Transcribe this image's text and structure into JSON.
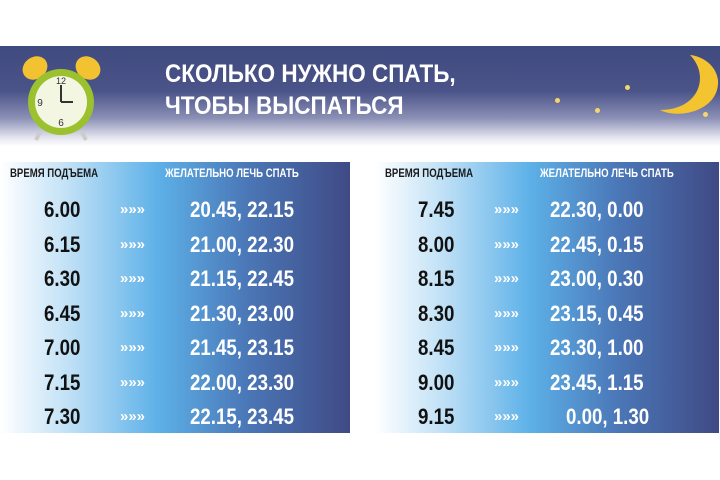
{
  "title": {
    "line1": "СКОЛЬКО НУЖНО СПАТЬ,",
    "line2": "ЧТОБЫ ВЫСПАТЬСЯ"
  },
  "icons": {
    "clock": "alarm-clock-icon",
    "moon": "crescent-moon-icon"
  },
  "colors": {
    "navy": "#3f4a85",
    "sky": "#5db1e8",
    "gold": "#f4c430"
  },
  "tables": [
    {
      "header_wake": "ВРЕМЯ ПОДЪЕМА",
      "header_sleep": "ЖЕЛАТЕЛЬНО ЛЕЧЬ СПАТЬ",
      "rows": [
        {
          "wake": "6.00",
          "arrow": "»»»",
          "sleep": "20.45, 22.15"
        },
        {
          "wake": "6.15",
          "arrow": "»»»",
          "sleep": "21.00, 22.30"
        },
        {
          "wake": "6.30",
          "arrow": "»»»",
          "sleep": "21.15, 22.45"
        },
        {
          "wake": "6.45",
          "arrow": "»»»",
          "sleep": "21.30, 23.00"
        },
        {
          "wake": "7.00",
          "arrow": "»»»",
          "sleep": "21.45, 23.15"
        },
        {
          "wake": "7.15",
          "arrow": "»»»",
          "sleep": "22.00, 23.30"
        },
        {
          "wake": "7.30",
          "arrow": "»»»",
          "sleep": "22.15, 23.45"
        }
      ]
    },
    {
      "header_wake": "ВРЕМЯ ПОДЪЕМА",
      "header_sleep": "ЖЕЛАТЕЛЬНО ЛЕЧЬ СПАТЬ",
      "rows": [
        {
          "wake": "7.45",
          "arrow": "»»»",
          "sleep": "22.30, 0.00"
        },
        {
          "wake": "8.00",
          "arrow": "»»»",
          "sleep": "22.45, 0.15"
        },
        {
          "wake": "8.15",
          "arrow": "»»»",
          "sleep": "23.00, 0.30"
        },
        {
          "wake": "8.30",
          "arrow": "»»»",
          "sleep": "23.15, 0.45"
        },
        {
          "wake": "8.45",
          "arrow": "»»»",
          "sleep": "23.30, 1.00"
        },
        {
          "wake": "9.00",
          "arrow": "»»»",
          "sleep": "23.45, 1.15"
        },
        {
          "wake": "9.15",
          "arrow": "»»»",
          "sleep": "0.00, 1.30"
        }
      ]
    }
  ]
}
